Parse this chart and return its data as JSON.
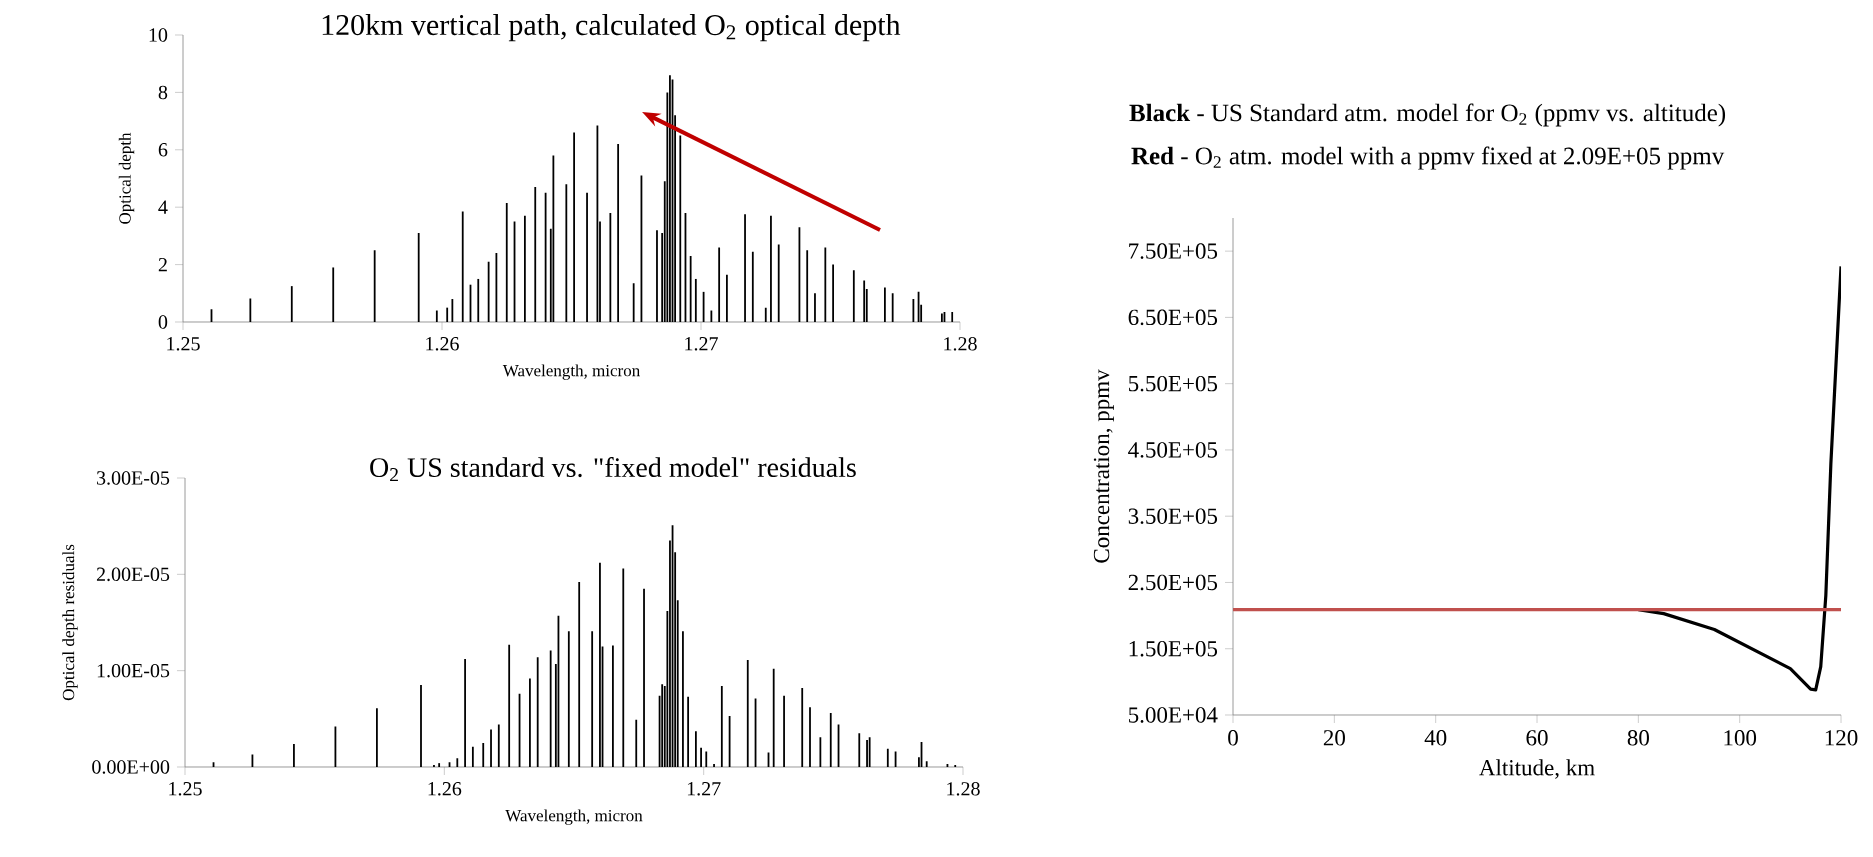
{
  "chart_data": [
    {
      "type": "bar",
      "title": "120km vertical path, calculated O$_{2}$ optical depth",
      "xlabel": "Wavelength, micron",
      "ylabel": "Optical depth",
      "color": "#000000",
      "x": [
        1.2511,
        1.2526,
        1.2542,
        1.2558,
        1.2574,
        1.2591,
        1.2598,
        1.2602,
        1.2604,
        1.2608,
        1.2611,
        1.2614,
        1.2618,
        1.2621,
        1.2625,
        1.2628,
        1.2632,
        1.2636,
        1.264,
        1.2642,
        1.2643,
        1.2648,
        1.2651,
        1.2656,
        1.266,
        1.2661,
        1.2665,
        1.2668,
        1.2674,
        1.2677,
        1.2683,
        1.2685,
        1.2686,
        1.2687,
        1.2688,
        1.2689,
        1.269,
        1.2692,
        1.2694,
        1.2696,
        1.2698,
        1.2701,
        1.2704,
        1.2707,
        1.271,
        1.2717,
        1.272,
        1.2725,
        1.2727,
        1.273,
        1.2738,
        1.2741,
        1.2744,
        1.2748,
        1.2751,
        1.2759,
        1.2763,
        1.2764,
        1.2771,
        1.2774,
        1.2782,
        1.2784,
        1.2785,
        1.2793,
        1.2794,
        1.2797
      ],
      "values": [
        0.44,
        0.82,
        1.25,
        1.9,
        2.5,
        3.1,
        0.4,
        0.5,
        0.8,
        3.85,
        1.3,
        1.5,
        2.1,
        2.4,
        4.15,
        3.5,
        3.7,
        4.7,
        4.5,
        3.25,
        5.8,
        4.8,
        6.6,
        4.5,
        6.85,
        3.5,
        3.8,
        6.2,
        1.35,
        5.1,
        3.2,
        3.1,
        4.9,
        8.0,
        8.6,
        8.45,
        7.2,
        6.5,
        3.8,
        2.3,
        1.5,
        1.05,
        0.4,
        2.6,
        1.65,
        3.75,
        2.45,
        0.5,
        3.7,
        2.7,
        3.3,
        2.5,
        1.0,
        2.6,
        2.0,
        1.8,
        1.45,
        1.15,
        1.2,
        1.0,
        0.8,
        1.05,
        0.6,
        0.3,
        0.35,
        0.35
      ],
      "xlim": [
        1.25,
        1.28
      ],
      "ylim": [
        0,
        10
      ],
      "xticks": [
        1.25,
        1.26,
        1.27,
        1.28
      ],
      "yticks": [
        0,
        2,
        4,
        6,
        8,
        10
      ]
    },
    {
      "type": "bar",
      "title": "O$_{2}$ US standard vs. \"fixed model\" residuals",
      "xlabel": "Wavelength, micron",
      "ylabel": "Optical depth residuals",
      "color": "#000000",
      "x": [
        1.2511,
        1.2526,
        1.2542,
        1.2558,
        1.2574,
        1.2591,
        1.2596,
        1.2598,
        1.2602,
        1.2605,
        1.2608,
        1.2611,
        1.2615,
        1.2618,
        1.2621,
        1.2625,
        1.2629,
        1.2633,
        1.2636,
        1.2641,
        1.2643,
        1.2644,
        1.2648,
        1.2652,
        1.2657,
        1.266,
        1.2661,
        1.2665,
        1.2669,
        1.2674,
        1.2677,
        1.2683,
        1.2684,
        1.2685,
        1.2686,
        1.2687,
        1.2688,
        1.2689,
        1.269,
        1.2692,
        1.2694,
        1.2697,
        1.2699,
        1.2701,
        1.2704,
        1.2707,
        1.271,
        1.2717,
        1.272,
        1.2725,
        1.2727,
        1.2731,
        1.2738,
        1.2741,
        1.2745,
        1.2749,
        1.2752,
        1.276,
        1.2763,
        1.2764,
        1.2771,
        1.2774,
        1.2783,
        1.2784,
        1.2786,
        1.2794,
        1.2797
      ],
      "values": [
        5e-07,
        1.3e-06,
        2.4e-06,
        4.2e-06,
        6.1e-06,
        8.5e-06,
        2e-07,
        4e-07,
        5e-07,
        9e-07,
        1.12e-05,
        2.1e-06,
        2.5e-06,
        3.9e-06,
        4.4e-06,
        1.27e-05,
        7.6e-06,
        9.2e-06,
        1.14e-05,
        1.21e-05,
        1.07e-05,
        1.57e-05,
        1.41e-05,
        1.92e-05,
        1.41e-05,
        2.12e-05,
        1.25e-05,
        1.26e-05,
        2.06e-05,
        4.9e-06,
        1.85e-05,
        7.4e-06,
        8.6e-06,
        8.4e-06,
        1.62e-05,
        2.35e-05,
        2.51e-05,
        2.23e-05,
        1.73e-05,
        1.41e-05,
        7.3e-06,
        3.7e-06,
        2e-06,
        1.6e-06,
        3e-07,
        8.4e-06,
        5.3e-06,
        1.11e-05,
        7.1e-06,
        1.5e-06,
        1.02e-05,
        7.4e-06,
        8.2e-06,
        6.2e-06,
        3.1e-06,
        5.6e-06,
        4.4e-06,
        3.5e-06,
        2.8e-06,
        3.1e-06,
        1.9e-06,
        1.6e-06,
        1e-06,
        2.6e-06,
        6e-07,
        3e-07,
        2e-07
      ],
      "xlim": [
        1.25,
        1.28
      ],
      "ylim": [
        0,
        3e-05
      ],
      "xticks": [
        1.25,
        1.26,
        1.27,
        1.28
      ],
      "yticks": [
        {
          "value": 0,
          "label": "0.00E+00"
        },
        {
          "value": 1e-05,
          "label": "1.00E-05"
        },
        {
          "value": 2e-05,
          "label": "2.00E-05"
        },
        {
          "value": 3e-05,
          "label": "3.00E-05"
        }
      ]
    },
    {
      "type": "line",
      "title": "**Black** - US Standard atm. model for O$_{2}$ (ppmv  vs. altitude)",
      "subtitle": "**Red** - O$_{2}$ atm. model with a ppmv fixed at 2.09E+05 ppmv",
      "xlabel": "Altitude, km",
      "ylabel": "Concentration, ppmv",
      "series": [
        {
          "color": "#000000",
          "x": [
            80,
            85,
            95,
            110,
            114,
            115,
            116,
            117,
            118,
            120
          ],
          "values": [
            209000,
            203000,
            179000,
            120000,
            89000,
            88000,
            123000,
            230000,
            430000,
            727000
          ]
        },
        {
          "color": "#c0504d",
          "x": [
            0,
            120
          ],
          "values": [
            209000,
            209000
          ]
        }
      ],
      "xlim": [
        0,
        120
      ],
      "ylim": [
        50000,
        800000
      ],
      "xticks": [
        0,
        20,
        40,
        60,
        80,
        100,
        120
      ],
      "yticks": [
        {
          "value": 50000,
          "label": "5.00E+04"
        },
        {
          "value": 150000,
          "label": "1.50E+05"
        },
        {
          "value": 250000,
          "label": "2.50E+05"
        },
        {
          "value": 350000,
          "label": "3.50E+05"
        },
        {
          "value": 450000,
          "label": "4.50E+05"
        },
        {
          "value": 550000,
          "label": "5.50E+05"
        },
        {
          "value": 650000,
          "label": "6.50E+05"
        },
        {
          "value": 750000,
          "label": "7.50E+05"
        }
      ]
    }
  ]
}
